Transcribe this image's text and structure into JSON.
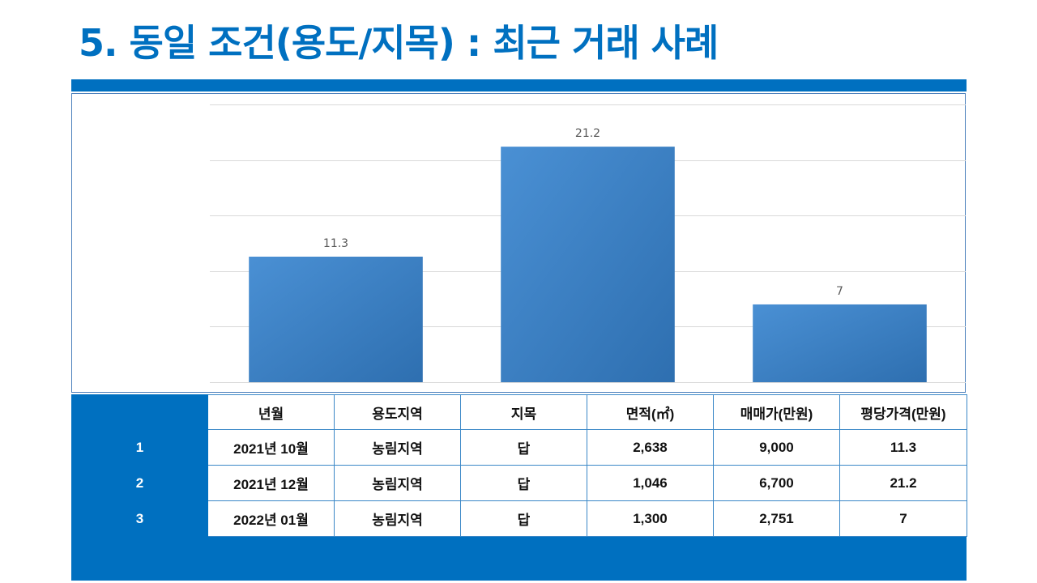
{
  "title": "5. 동일 조건(용도/지목) : 최근 거래 사례",
  "colors": {
    "accent": "#0070C0",
    "bar": "#3f86cc"
  },
  "chart_data": {
    "type": "bar",
    "categories": [
      "1",
      "2",
      "3"
    ],
    "values": [
      11.3,
      21.2,
      7
    ],
    "data_labels": [
      "11.3",
      "21.2",
      "7"
    ],
    "ylim": [
      0,
      25
    ],
    "grid": true
  },
  "table": {
    "headers": [
      "",
      "년월",
      "용도지역",
      "지목",
      "면적(㎡)",
      "매매가(만원)",
      "평당가격(만원)"
    ],
    "rows": [
      [
        "1",
        "2021년 10월",
        "농림지역",
        "답",
        "2,638",
        "9,000",
        "11.3"
      ],
      [
        "2",
        "2021년 12월",
        "농림지역",
        "답",
        "1,046",
        "6,700",
        "21.2"
      ],
      [
        "3",
        "2022년 01월",
        "농림지역",
        "답",
        "1,300",
        "2,751",
        "7"
      ]
    ]
  }
}
